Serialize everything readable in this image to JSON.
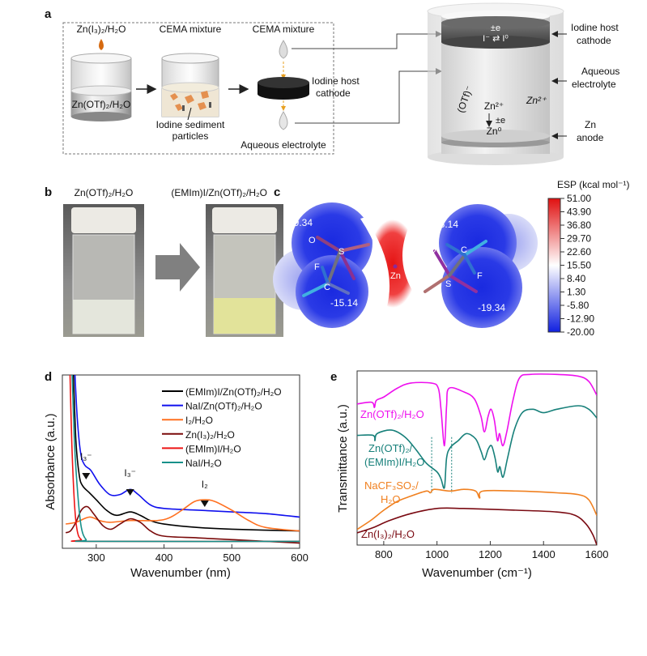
{
  "panels": {
    "a": {
      "label": "a",
      "step1_top": "Zn(I₃)₂/H₂O",
      "step1_bottom": "Zn(OTf)₂/H₂O",
      "step2_top": "CEMA mixture",
      "step2_bottom_1": "Iodine sediment",
      "step2_bottom_2": "particles",
      "step3_top": "CEMA mixture",
      "step3_disk_1": "Iodine host",
      "step3_disk_2": "cathode",
      "step3_bottom": "Aqueous electrolyte",
      "cell": {
        "cathode_e": "±e",
        "cathode_reaction": "I⁻ ⇄ I⁰",
        "label_cathode_1": "Iodine host",
        "label_cathode_2": "cathode",
        "label_electrolyte_1": "Aqueous",
        "label_electrolyte_2": "electrolyte",
        "anion": "(OTf)⁻",
        "zn_ion": "Zn²⁺",
        "zn_ion_free": "Zn²⁺",
        "anode_e": "±e",
        "zn_metal": "Zn⁰",
        "label_anode_1": "Zn",
        "label_anode_2": "anode"
      }
    },
    "b": {
      "label": "b",
      "vial1_label": "Zn(OTf)₂/H₂O",
      "vial2_label": "(EMIm)I/Zn(OTf)₂/H₂O",
      "vial1_liquid_color": "#e4e6dc",
      "vial2_liquid_color": "#e2e39a"
    },
    "c": {
      "label": "c",
      "colorbar_title": "ESP (kcal mol⁻¹)",
      "colorbar_ticks": [
        "51.00",
        "43.90",
        "36.80",
        "29.70",
        "22.60",
        "15.50",
        "8.40",
        "1.30",
        "-5.80",
        "-12.90",
        "-20.00"
      ],
      "colorbar_colors": {
        "max": "#e01010",
        "mid": "#ffffff",
        "min": "#1020e0"
      },
      "values": {
        "left_top": "-19.34",
        "left_bottom": "-15.14",
        "right_top": "-15.14",
        "right_bottom": "-19.34"
      },
      "atoms": {
        "o_left": "O",
        "s_left": "S",
        "f_left": "F",
        "c_left": "C",
        "zn": "Zn",
        "o_right": "O",
        "c_right": "C",
        "s_right": "S",
        "f_right": "F"
      }
    },
    "d": {
      "label": "d"
    },
    "e": {
      "label": "e"
    }
  },
  "chart_data": [
    {
      "panel": "d",
      "type": "line",
      "xlabel": "Wavenumber (nm)",
      "ylabel": "Absorbance (a.u.)",
      "xlim": [
        250,
        600
      ],
      "ylim": [
        0,
        1
      ],
      "xticks": [
        300,
        400,
        500,
        600
      ],
      "yticks": [],
      "grid": false,
      "legend": "top-right",
      "series": [
        {
          "name": "(EMIm)I/Zn(OTf)₂/H₂O",
          "color": "#000000",
          "points": [
            [
              266,
              1.05
            ],
            [
              270,
              0.62
            ],
            [
              275,
              0.42
            ],
            [
              280,
              0.36
            ],
            [
              290,
              0.32
            ],
            [
              300,
              0.28
            ],
            [
              315,
              0.22
            ],
            [
              330,
              0.19
            ],
            [
              350,
              0.21
            ],
            [
              365,
              0.19
            ],
            [
              380,
              0.16
            ],
            [
              400,
              0.14
            ],
            [
              450,
              0.12
            ],
            [
              500,
              0.11
            ],
            [
              600,
              0.1
            ]
          ]
        },
        {
          "name": "NaI/Zn(OTf)₂/H₂O",
          "color": "#1010ee",
          "points": [
            [
              268,
              1.05
            ],
            [
              272,
              0.75
            ],
            [
              277,
              0.55
            ],
            [
              283,
              0.48
            ],
            [
              292,
              0.45
            ],
            [
              305,
              0.37
            ],
            [
              320,
              0.31
            ],
            [
              335,
              0.31
            ],
            [
              350,
              0.34
            ],
            [
              362,
              0.31
            ],
            [
              380,
              0.25
            ],
            [
              400,
              0.23
            ],
            [
              450,
              0.22
            ],
            [
              500,
              0.21
            ],
            [
              550,
              0.2
            ],
            [
              600,
              0.18
            ]
          ]
        },
        {
          "name": "I₂/H₂O",
          "color": "#ff7020",
          "points": [
            [
              255,
              0.14
            ],
            [
              270,
              0.15
            ],
            [
              290,
              0.18
            ],
            [
              305,
              0.16
            ],
            [
              320,
              0.15
            ],
            [
              350,
              0.16
            ],
            [
              390,
              0.16
            ],
            [
              410,
              0.18
            ],
            [
              430,
              0.23
            ],
            [
              445,
              0.27
            ],
            [
              460,
              0.28
            ],
            [
              475,
              0.27
            ],
            [
              500,
              0.22
            ],
            [
              525,
              0.16
            ],
            [
              550,
              0.12
            ],
            [
              600,
              0.1
            ]
          ]
        },
        {
          "name": "Zn(I₃)₂/H₂O",
          "color": "#7a0a0a",
          "points": [
            [
              255,
              0.09
            ],
            [
              262,
              0.1
            ],
            [
              270,
              0.15
            ],
            [
              278,
              0.22
            ],
            [
              287,
              0.24
            ],
            [
              296,
              0.2
            ],
            [
              310,
              0.13
            ],
            [
              322,
              0.11
            ],
            [
              335,
              0.14
            ],
            [
              350,
              0.17
            ],
            [
              365,
              0.15
            ],
            [
              380,
              0.1
            ],
            [
              400,
              0.07
            ],
            [
              450,
              0.06
            ],
            [
              500,
              0.05
            ],
            [
              550,
              0.04
            ],
            [
              600,
              0.03
            ]
          ]
        },
        {
          "name": "(EMIm)I/H₂O",
          "color": "#ee1515",
          "points": [
            [
              261,
              1.05
            ],
            [
              264,
              0.6
            ],
            [
              268,
              0.25
            ],
            [
              272,
              0.1
            ],
            [
              278,
              0.05
            ],
            [
              290,
              0.04
            ],
            [
              600,
              0.04
            ]
          ]
        },
        {
          "name": "NaI/H₂O",
          "color": "#17908a",
          "points": [
            [
              264,
              1.05
            ],
            [
              268,
              0.6
            ],
            [
              273,
              0.3
            ],
            [
              278,
              0.12
            ],
            [
              285,
              0.05
            ],
            [
              295,
              0.04
            ],
            [
              600,
              0.04
            ]
          ]
        }
      ],
      "annotations": [
        {
          "text": "I₃⁻",
          "x": 285
        },
        {
          "text": "I₃⁻",
          "x": 350
        },
        {
          "text": "I₂",
          "x": 460
        }
      ]
    },
    {
      "panel": "e",
      "type": "line",
      "xlabel": "Wavenumber (cm⁻¹)",
      "ylabel": "Transmittance (a.u.)",
      "xlim": [
        700,
        1600
      ],
      "ylim": [
        0,
        1
      ],
      "xticks": [
        800,
        1000,
        1200,
        1400,
        1600
      ],
      "yticks": [],
      "grid": false,
      "series": [
        {
          "name": "Zn(OTf)₂/H₂O",
          "color": "#ee10ee",
          "points": [
            [
              700,
              0.81
            ],
            [
              755,
              0.82
            ],
            [
              765,
              0.79
            ],
            [
              772,
              0.83
            ],
            [
              800,
              0.85
            ],
            [
              850,
              0.9
            ],
            [
              900,
              0.93
            ],
            [
              980,
              0.93
            ],
            [
              1005,
              0.9
            ],
            [
              1015,
              0.78
            ],
            [
              1028,
              0.57
            ],
            [
              1036,
              0.8
            ],
            [
              1045,
              0.9
            ],
            [
              1100,
              0.88
            ],
            [
              1140,
              0.84
            ],
            [
              1165,
              0.74
            ],
            [
              1178,
              0.65
            ],
            [
              1192,
              0.74
            ],
            [
              1203,
              0.78
            ],
            [
              1215,
              0.72
            ],
            [
              1227,
              0.6
            ],
            [
              1235,
              0.64
            ],
            [
              1247,
              0.57
            ],
            [
              1262,
              0.65
            ],
            [
              1285,
              0.83
            ],
            [
              1310,
              0.96
            ],
            [
              1350,
              0.98
            ],
            [
              1450,
              0.98
            ],
            [
              1530,
              0.97
            ],
            [
              1570,
              0.94
            ],
            [
              1600,
              0.86
            ]
          ]
        },
        {
          "name": "Zn(OTf)₂/(EMIm)I/H₂O",
          "color": "#17807a",
          "points": [
            [
              700,
              0.63
            ],
            [
              760,
              0.63
            ],
            [
              767,
              0.6
            ],
            [
              775,
              0.64
            ],
            [
              830,
              0.66
            ],
            [
              880,
              0.62
            ],
            [
              920,
              0.55
            ],
            [
              960,
              0.47
            ],
            [
              1000,
              0.42
            ],
            [
              1015,
              0.38
            ],
            [
              1028,
              0.33
            ],
            [
              1036,
              0.5
            ],
            [
              1050,
              0.56
            ],
            [
              1080,
              0.6
            ],
            [
              1110,
              0.64
            ],
            [
              1145,
              0.61
            ],
            [
              1165,
              0.54
            ],
            [
              1178,
              0.49
            ],
            [
              1192,
              0.55
            ],
            [
              1205,
              0.57
            ],
            [
              1218,
              0.5
            ],
            [
              1228,
              0.42
            ],
            [
              1236,
              0.45
            ],
            [
              1248,
              0.39
            ],
            [
              1265,
              0.5
            ],
            [
              1290,
              0.66
            ],
            [
              1320,
              0.76
            ],
            [
              1360,
              0.78
            ],
            [
              1400,
              0.76
            ],
            [
              1450,
              0.78
            ],
            [
              1530,
              0.8
            ],
            [
              1570,
              0.78
            ],
            [
              1600,
              0.73
            ]
          ]
        },
        {
          "name": "NaCF₃SO₂/H₂O",
          "color": "#f08020",
          "points": [
            [
              700,
              0.09
            ],
            [
              750,
              0.14
            ],
            [
              800,
              0.2
            ],
            [
              850,
              0.25
            ],
            [
              900,
              0.28
            ],
            [
              960,
              0.31
            ],
            [
              975,
              0.3
            ],
            [
              990,
              0.32
            ],
            [
              1050,
              0.31
            ],
            [
              1100,
              0.32
            ],
            [
              1145,
              0.31
            ],
            [
              1160,
              0.27
            ],
            [
              1172,
              0.31
            ],
            [
              1300,
              0.31
            ],
            [
              1450,
              0.3
            ],
            [
              1530,
              0.29
            ],
            [
              1570,
              0.26
            ],
            [
              1600,
              0.17
            ]
          ]
        },
        {
          "name": "Zn(I₃)₂/H₂O",
          "color": "#7a0a12",
          "points": [
            [
              700,
              0.07
            ],
            [
              760,
              0.1
            ],
            [
              820,
              0.14
            ],
            [
              900,
              0.18
            ],
            [
              1000,
              0.21
            ],
            [
              1100,
              0.21
            ],
            [
              1300,
              0.2
            ],
            [
              1450,
              0.19
            ],
            [
              1520,
              0.17
            ],
            [
              1560,
              0.12
            ],
            [
              1585,
              0.06
            ],
            [
              1600,
              0.0
            ]
          ]
        }
      ],
      "series_labels": [
        {
          "lines": [
            "Zn(OTf)₂/H₂O"
          ]
        },
        {
          "lines": [
            "Zn(OTf)₂/",
            "(EMIm)I/H₂O"
          ]
        },
        {
          "lines": [
            "NaCF₃SO₂/",
            "H₂O"
          ]
        },
        {
          "lines": [
            "Zn(I₃)₂/H₂O"
          ]
        }
      ],
      "reference_lines_x": [
        980,
        1055
      ]
    }
  ]
}
